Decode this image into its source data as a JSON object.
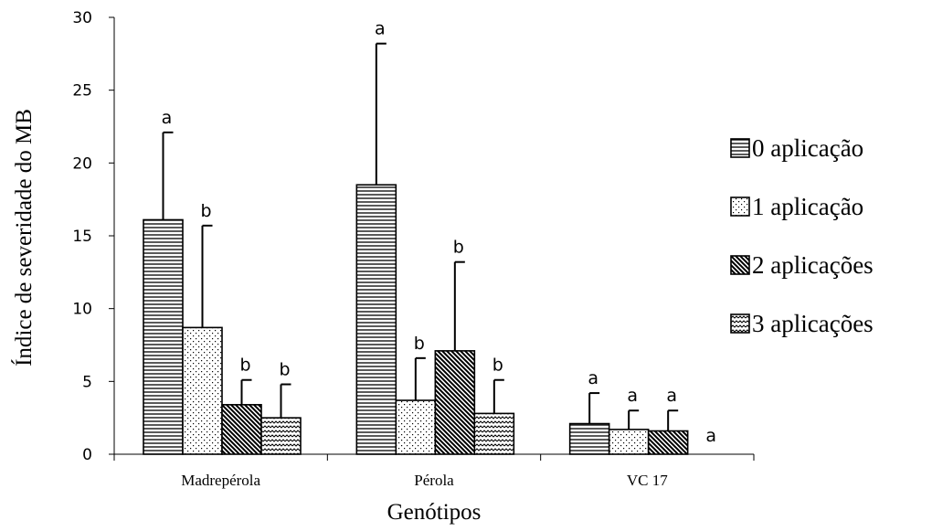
{
  "chart_data": {
    "type": "bar",
    "xlabel": "Genótipos",
    "ylabel": "Índice de severidade do MB",
    "ylim": [
      0,
      30
    ],
    "yticks": [
      0,
      5,
      10,
      15,
      20,
      25,
      30
    ],
    "grid": false,
    "legend_position": "right",
    "categories": [
      "Madrepérola",
      "Pérola",
      "VC 17"
    ],
    "series": [
      {
        "name": "0 aplicação",
        "pattern": "horizontal-lines",
        "values": [
          16.1,
          18.5,
          2.1
        ],
        "errors": [
          6.0,
          9.7,
          2.1
        ],
        "letters": [
          "a",
          "a",
          "a"
        ]
      },
      {
        "name": "1 aplicação",
        "pattern": "dots",
        "values": [
          8.7,
          3.7,
          1.7
        ],
        "errors": [
          7.0,
          2.9,
          1.3
        ],
        "letters": [
          "b",
          "b",
          "a"
        ]
      },
      {
        "name": "2 aplicações",
        "pattern": "diagonal-lines",
        "values": [
          3.4,
          7.1,
          1.6
        ],
        "errors": [
          1.7,
          6.1,
          1.4
        ],
        "letters": [
          "b",
          "b",
          "a"
        ]
      },
      {
        "name": "3 aplicações",
        "pattern": "waves",
        "values": [
          2.5,
          2.8,
          0
        ],
        "errors": [
          2.3,
          2.3,
          0
        ],
        "letters": [
          "b",
          "b",
          "a"
        ]
      }
    ]
  }
}
